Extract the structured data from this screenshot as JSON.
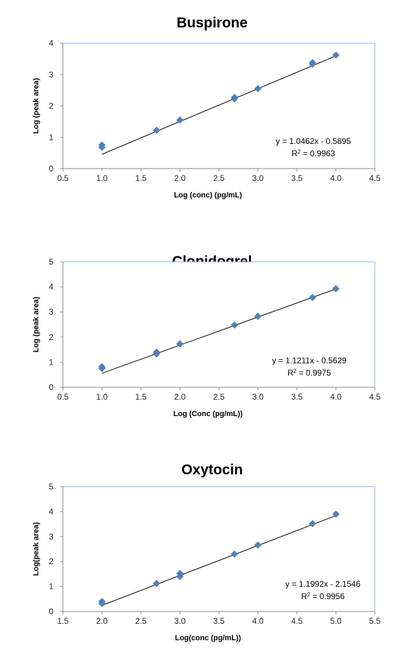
{
  "chart_data": [
    {
      "type": "scatter",
      "title": "Buspirone",
      "xlabel": "Log (conc) (pg/mL)",
      "ylabel": "Log (peak area)",
      "xlim": [
        0.5,
        4.5
      ],
      "ylim": [
        0,
        4
      ],
      "xticks": [
        "0.5",
        "1.0",
        "1.5",
        "2.0",
        "2.5",
        "3.0",
        "3.5",
        "4.0",
        "4.5"
      ],
      "yticks": [
        "0",
        "1",
        "2",
        "3",
        "4"
      ],
      "grid": false,
      "points": [
        [
          1.0,
          0.75
        ],
        [
          1.0,
          0.68
        ],
        [
          1.7,
          1.22
        ],
        [
          2.0,
          1.55
        ],
        [
          2.7,
          2.27
        ],
        [
          2.7,
          2.22
        ],
        [
          3.0,
          2.55
        ],
        [
          3.7,
          3.38
        ],
        [
          3.7,
          3.33
        ],
        [
          4.0,
          3.62
        ]
      ],
      "trendline": {
        "slope": 1.0462,
        "intercept": -0.5895,
        "x_range": [
          1.0,
          4.0
        ]
      },
      "equation": "y = 1.0462x - 0.5895",
      "r2_label": "R",
      "r2_value": " = 0.9963",
      "marker_color": "#4F81BD"
    },
    {
      "type": "scatter",
      "title": "Clopidogrel",
      "xlabel": "Log (Conc (pg/mL))",
      "ylabel": "Log (peak area)",
      "xlim": [
        0.5,
        4.5
      ],
      "ylim": [
        0,
        5
      ],
      "xticks": [
        "0.5",
        "1.0",
        "1.5",
        "2.0",
        "2.5",
        "3.0",
        "3.5",
        "4.0",
        "4.5"
      ],
      "yticks": [
        "0",
        "1",
        "2",
        "3",
        "4",
        "5"
      ],
      "grid": false,
      "points": [
        [
          1.0,
          0.82
        ],
        [
          1.0,
          0.75
        ],
        [
          1.7,
          1.4
        ],
        [
          1.7,
          1.33
        ],
        [
          2.0,
          1.73
        ],
        [
          2.7,
          2.48
        ],
        [
          3.0,
          2.83
        ],
        [
          3.7,
          3.58
        ],
        [
          4.0,
          3.93
        ]
      ],
      "trendline": {
        "slope": 1.1211,
        "intercept": -0.5629,
        "x_range": [
          1.0,
          4.0
        ]
      },
      "equation": "y = 1.1211x - 0.5629",
      "r2_label": "R",
      "r2_value": " = 0.9975",
      "marker_color": "#4F81BD"
    },
    {
      "type": "scatter",
      "title": "Oxytocin",
      "xlabel": "Log(conc (pg/mL))",
      "ylabel": "Log(peak area)",
      "xlim": [
        1.5,
        5.5
      ],
      "ylim": [
        0,
        5
      ],
      "xticks": [
        "1.5",
        "2.0",
        "2.5",
        "3.0",
        "3.5",
        "4.0",
        "4.5",
        "5.0",
        "5.5"
      ],
      "yticks": [
        "0",
        "1",
        "2",
        "3",
        "4",
        "5"
      ],
      "grid": false,
      "points": [
        [
          2.0,
          0.4
        ],
        [
          2.0,
          0.32
        ],
        [
          2.7,
          1.12
        ],
        [
          3.0,
          1.52
        ],
        [
          3.0,
          1.4
        ],
        [
          3.7,
          2.3
        ],
        [
          4.0,
          2.66
        ],
        [
          4.7,
          3.52
        ],
        [
          5.0,
          3.9
        ]
      ],
      "trendline": {
        "slope": 1.1992,
        "intercept": -2.1546,
        "x_range": [
          2.0,
          5.0
        ]
      },
      "equation": "y = 1.1992x - 2.1546",
      "r2_label": "R",
      "r2_value": " = 0.9956",
      "marker_color": "#4F81BD"
    }
  ]
}
